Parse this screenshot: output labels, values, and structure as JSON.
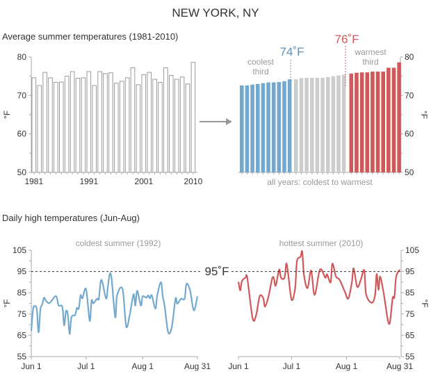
{
  "title": "NEW YORK, NY",
  "colors": {
    "cool": "#74a9cf",
    "warm": "#d0585a",
    "middle": "#cccccc",
    "bar_outline": "#999999",
    "axis": "#aaaaaa"
  },
  "chart_data": [
    {
      "type": "bar",
      "title": "Average summer temperatures (1981-2010)",
      "ylabel": "°F",
      "ylim": [
        50,
        80
      ],
      "yticks": [
        "50",
        "60",
        "70",
        "80"
      ],
      "xtick_labels": [
        "1981",
        "1991",
        "2001",
        "2010"
      ],
      "categories": [
        1981,
        1982,
        1983,
        1984,
        1985,
        1986,
        1987,
        1988,
        1989,
        1990,
        1991,
        1992,
        1993,
        1994,
        1995,
        1996,
        1997,
        1998,
        1999,
        2000,
        2001,
        2002,
        2003,
        2004,
        2005,
        2006,
        2007,
        2008,
        2009,
        2010
      ],
      "values": [
        74.6,
        72.6,
        76.0,
        74.6,
        73.4,
        73.5,
        75.0,
        76.2,
        74.5,
        74.6,
        76.2,
        72.6,
        76.2,
        75.7,
        75.9,
        73.2,
        73.7,
        74.6,
        77.2,
        72.8,
        75.4,
        76.0,
        74.2,
        73.4,
        77.2,
        75.2,
        74.2,
        74.8,
        73.0,
        78.6
      ],
      "grid": false
    },
    {
      "type": "bar",
      "xlabel": "all years: coldest to warmest",
      "ylabel": "°F",
      "ylim": [
        50,
        80
      ],
      "yticks": [
        "50",
        "60",
        "70",
        "80"
      ],
      "sorted_ascending": true,
      "thresholds": [
        {
          "value": 74,
          "label": "74˚F"
        },
        {
          "value": 76,
          "label": "76˚F"
        }
      ],
      "annotations": {
        "cool": [
          "coolest",
          "third"
        ],
        "warm": [
          "warmest",
          "third"
        ]
      },
      "grid": false
    },
    {
      "type": "line",
      "section_title": "Daily high temperatures (Jun-Aug)",
      "title": "coldest summer (1992)",
      "ylabel": "°F",
      "ylim": [
        55,
        105
      ],
      "yticks": [
        "55",
        "65",
        "75",
        "85",
        "95",
        "105"
      ],
      "xticks": [
        "Jun 1",
        "Jul 1",
        "Aug 1",
        "Aug 31"
      ],
      "reference_line": {
        "value": 95,
        "label": "95˚F"
      },
      "x": [
        "Jun 1",
        "Jun 2",
        "Jun 3",
        "Jun 4",
        "Jun 5",
        "Jun 6",
        "Jun 7",
        "Jun 8",
        "Jun 9",
        "Jun 11",
        "Jun 14",
        "Jun 15",
        "Jun 16",
        "Jun 18",
        "Jun 19",
        "Jun 20",
        "Jun 21",
        "Jun 22",
        "Jun 23",
        "Jun 25",
        "Jun 26",
        "Jun 27",
        "Jun 28",
        "Jun 29",
        "Jul 1",
        "Jul 3",
        "Jul 4",
        "Jul 5",
        "Jul 7",
        "Jul 8",
        "Jul 9",
        "Jul 10",
        "Jul 12",
        "Jul 13",
        "Jul 14",
        "Jul 15",
        "Jul 17",
        "Jul 18",
        "Jul 21",
        "Jul 23",
        "Jul 25",
        "Jul 27",
        "Jul 28",
        "Jul 29",
        "Jul 31",
        "Aug 1",
        "Aug 3",
        "Aug 4",
        "Aug 5",
        "Aug 6",
        "Aug 8",
        "Aug 9",
        "Aug 11",
        "Aug 12",
        "Aug 13",
        "Aug 15",
        "Aug 17",
        "Aug 19",
        "Aug 20",
        "Aug 22",
        "Aug 24",
        "Aug 25",
        "Aug 27",
        "Aug 29",
        "Aug 31"
      ],
      "series": [
        {
          "values": [
            67,
            77.3,
            78.7,
            77.3,
            66.4,
            77.3,
            79.5,
            82.7,
            81.3,
            80.2,
            83.3,
            82.7,
            79,
            78.4,
            69.7,
            76.2,
            75,
            65.6,
            73.5,
            74.6,
            77.8,
            77.6,
            83.8,
            82.4,
            86.7,
            71.8,
            81.3,
            80,
            82.2,
            82.2,
            90.3,
            89.8,
            82.2,
            88.2,
            93.9,
            91.4,
            73.5,
            83.8,
            86.7,
            69.1,
            75,
            84.3,
            79,
            86,
            79,
            83.3,
            82.7,
            83.8,
            82.4,
            83.8,
            77.5,
            83.8,
            90,
            83.3,
            79,
            66.4,
            69.1,
            82.2,
            79.8,
            82.2,
            82.2,
            89.2,
            86,
            76.7,
            83.3
          ]
        }
      ]
    },
    {
      "type": "line",
      "title": "hottest summer (2010)",
      "ylabel": "°F",
      "ylim": [
        55,
        105
      ],
      "yticks": [
        "55",
        "65",
        "75",
        "85",
        "95",
        "105"
      ],
      "xticks": [
        "Jun 1",
        "Jul 1",
        "Aug 1",
        "Aug 31"
      ],
      "reference_line": {
        "value": 95
      },
      "x": [
        "Jun 1",
        "Jun 2",
        "Jun 3",
        "Jun 5",
        "Jun 6",
        "Jun 9",
        "Jun 11",
        "Jun 13",
        "Jun 15",
        "Jun 16",
        "Jun 18",
        "Jun 20",
        "Jun 21",
        "Jun 22",
        "Jun 24",
        "Jun 25",
        "Jun 27",
        "Jun 28",
        "Jun 29",
        "Jul 1",
        "Jul 3",
        "Jul 4",
        "Jul 6",
        "Jul 7",
        "Jul 8",
        "Jul 10",
        "Jul 12",
        "Jul 14",
        "Jul 17",
        "Jul 20",
        "Jul 21",
        "Jul 23",
        "Jul 24",
        "Jul 26",
        "Jul 28",
        "Jul 31",
        "Aug 2",
        "Aug 4",
        "Aug 5",
        "Aug 7",
        "Aug 9",
        "Aug 11",
        "Aug 12",
        "Aug 15",
        "Aug 17",
        "Aug 18",
        "Aug 19",
        "Aug 20",
        "Aug 22",
        "Aug 25",
        "Aug 27",
        "Aug 28",
        "Aug 29",
        "Aug 31"
      ],
      "series": [
        {
          "values": [
            90.2,
            86.1,
            90.5,
            92.1,
            91.9,
            73,
            74.6,
            83.4,
            82.5,
            78.5,
            83.4,
            91.6,
            91.9,
            88.3,
            95.9,
            92.1,
            92.1,
            98.7,
            94.3,
            81.7,
            87.2,
            99.8,
            101.9,
            104.3,
            93.2,
            87.2,
            95.4,
            84,
            95.9,
            92.1,
            93.7,
            89.9,
            98.7,
            92.7,
            91.2,
            85.6,
            82.3,
            89.9,
            96.5,
            87.8,
            91,
            95.6,
            84.5,
            80.3,
            83.4,
            93.8,
            86.4,
            92.6,
            84.5,
            70.3,
            82.5,
            82.9,
            92.6,
            95.9
          ]
        }
      ]
    }
  ]
}
